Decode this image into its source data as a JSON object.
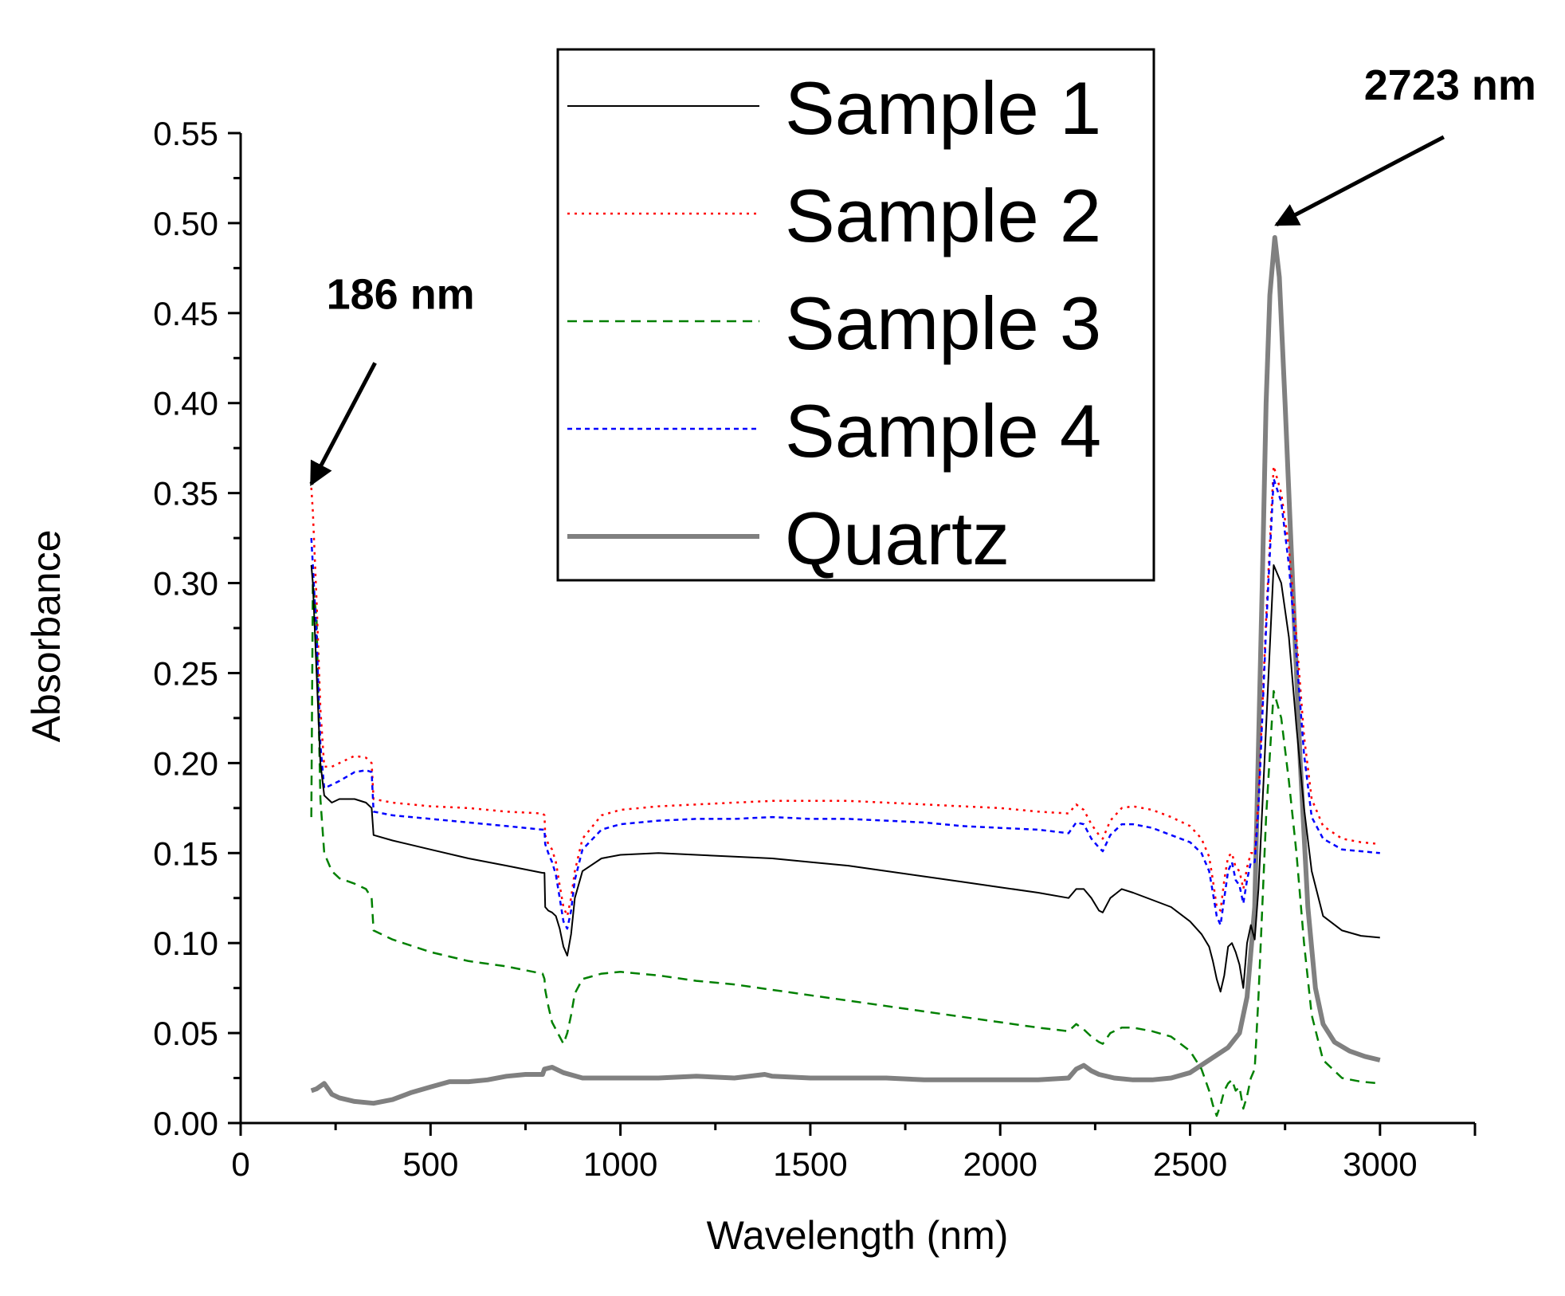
{
  "chart_data": {
    "type": "line",
    "xlabel": "Wavelength (nm)",
    "ylabel": "Absorbance",
    "xlim": [
      0,
      3250
    ],
    "ylim": [
      0,
      0.55
    ],
    "x_ticks": [
      0,
      500,
      1000,
      1500,
      2000,
      2500,
      3000
    ],
    "x_tick_labels": [
      "0",
      "500",
      "1000",
      "1500",
      "2000",
      "2500",
      "3000"
    ],
    "y_ticks": [
      0,
      0.05,
      0.1,
      0.15,
      0.2,
      0.25,
      0.3,
      0.35,
      0.4,
      0.45,
      0.5,
      0.55
    ],
    "y_tick_labels": [
      "0.00",
      "0.05",
      "0.10",
      "0.15",
      "0.20",
      "0.25",
      "0.30",
      "0.35",
      "0.40",
      "0.45",
      "0.50",
      "0.55"
    ],
    "legend_position": "top-center",
    "series": [
      {
        "name": "Sample 1",
        "color": "#000000",
        "style": "solid",
        "width": "thin",
        "x": [
          186,
          190,
          200,
          210,
          220,
          240,
          260,
          300,
          330,
          345,
          350,
          400,
          500,
          600,
          700,
          795,
          800,
          802,
          810,
          820,
          830,
          840,
          850,
          860,
          870,
          880,
          900,
          950,
          1000,
          1100,
          1200,
          1300,
          1400,
          1500,
          1600,
          1700,
          1800,
          1900,
          2000,
          2100,
          2180,
          2200,
          2220,
          2240,
          2260,
          2270,
          2290,
          2320,
          2350,
          2400,
          2450,
          2500,
          2530,
          2550,
          2560,
          2570,
          2580,
          2590,
          2600,
          2610,
          2620,
          2630,
          2640,
          2650,
          2660,
          2670,
          2680,
          2700,
          2720,
          2740,
          2760,
          2780,
          2800,
          2820,
          2850,
          2900,
          2950,
          3000
        ],
        "y": [
          0.31,
          0.3,
          0.25,
          0.2,
          0.182,
          0.178,
          0.18,
          0.18,
          0.178,
          0.175,
          0.16,
          0.157,
          0.152,
          0.147,
          0.143,
          0.139,
          0.139,
          0.12,
          0.118,
          0.117,
          0.115,
          0.108,
          0.098,
          0.093,
          0.105,
          0.125,
          0.14,
          0.147,
          0.149,
          0.15,
          0.149,
          0.148,
          0.147,
          0.145,
          0.143,
          0.14,
          0.137,
          0.134,
          0.131,
          0.128,
          0.125,
          0.13,
          0.13,
          0.125,
          0.118,
          0.117,
          0.125,
          0.13,
          0.128,
          0.124,
          0.12,
          0.112,
          0.105,
          0.098,
          0.09,
          0.08,
          0.073,
          0.082,
          0.098,
          0.1,
          0.095,
          0.088,
          0.075,
          0.1,
          0.11,
          0.102,
          0.13,
          0.22,
          0.31,
          0.3,
          0.27,
          0.22,
          0.175,
          0.14,
          0.115,
          0.107,
          0.104,
          0.103
        ]
      },
      {
        "name": "Sample 2",
        "color": "#ff0000",
        "style": "dotted",
        "width": "medium",
        "x": [
          186,
          190,
          200,
          210,
          220,
          240,
          260,
          300,
          330,
          345,
          350,
          400,
          500,
          600,
          700,
          795,
          800,
          802,
          810,
          820,
          830,
          840,
          850,
          860,
          870,
          880,
          900,
          950,
          1000,
          1100,
          1200,
          1300,
          1400,
          1500,
          1600,
          1700,
          1800,
          1900,
          2000,
          2100,
          2180,
          2200,
          2220,
          2240,
          2260,
          2270,
          2290,
          2320,
          2350,
          2400,
          2450,
          2500,
          2530,
          2550,
          2560,
          2570,
          2580,
          2590,
          2600,
          2610,
          2620,
          2630,
          2640,
          2650,
          2660,
          2670,
          2680,
          2700,
          2720,
          2740,
          2760,
          2780,
          2800,
          2820,
          2850,
          2900,
          2950,
          3000
        ],
        "y": [
          0.353,
          0.34,
          0.29,
          0.23,
          0.198,
          0.198,
          0.2,
          0.204,
          0.203,
          0.2,
          0.18,
          0.178,
          0.176,
          0.175,
          0.173,
          0.172,
          0.171,
          0.16,
          0.155,
          0.152,
          0.145,
          0.132,
          0.12,
          0.115,
          0.125,
          0.14,
          0.158,
          0.171,
          0.174,
          0.176,
          0.177,
          0.178,
          0.179,
          0.179,
          0.179,
          0.178,
          0.177,
          0.176,
          0.175,
          0.173,
          0.172,
          0.177,
          0.174,
          0.166,
          0.16,
          0.158,
          0.168,
          0.175,
          0.176,
          0.174,
          0.17,
          0.165,
          0.158,
          0.148,
          0.135,
          0.12,
          0.118,
          0.135,
          0.148,
          0.15,
          0.142,
          0.14,
          0.13,
          0.142,
          0.15,
          0.15,
          0.18,
          0.28,
          0.365,
          0.35,
          0.32,
          0.27,
          0.215,
          0.18,
          0.165,
          0.158,
          0.156,
          0.155
        ]
      },
      {
        "name": "Sample 3",
        "color": "#008000",
        "style": "dashed",
        "width": "medium",
        "x": [
          186,
          190,
          200,
          210,
          220,
          240,
          260,
          300,
          330,
          345,
          350,
          400,
          500,
          600,
          700,
          795,
          800,
          802,
          810,
          820,
          830,
          840,
          850,
          860,
          870,
          880,
          900,
          950,
          1000,
          1100,
          1200,
          1300,
          1400,
          1500,
          1600,
          1700,
          1800,
          1900,
          2000,
          2100,
          2180,
          2200,
          2220,
          2240,
          2260,
          2270,
          2290,
          2320,
          2350,
          2400,
          2450,
          2500,
          2530,
          2550,
          2560,
          2570,
          2580,
          2590,
          2600,
          2610,
          2620,
          2630,
          2640,
          2650,
          2660,
          2670,
          2680,
          2700,
          2720,
          2740,
          2760,
          2780,
          2800,
          2820,
          2850,
          2900,
          2950,
          3000
        ],
        "y": [
          0.17,
          0.3,
          0.28,
          0.18,
          0.15,
          0.14,
          0.136,
          0.133,
          0.13,
          0.125,
          0.107,
          0.102,
          0.095,
          0.09,
          0.087,
          0.083,
          0.08,
          0.074,
          0.065,
          0.056,
          0.052,
          0.048,
          0.044,
          0.05,
          0.06,
          0.072,
          0.08,
          0.083,
          0.084,
          0.082,
          0.079,
          0.077,
          0.074,
          0.071,
          0.068,
          0.065,
          0.062,
          0.059,
          0.056,
          0.053,
          0.051,
          0.055,
          0.052,
          0.048,
          0.045,
          0.044,
          0.05,
          0.053,
          0.053,
          0.051,
          0.048,
          0.04,
          0.03,
          0.018,
          0.01,
          0.004,
          0.01,
          0.018,
          0.022,
          0.024,
          0.018,
          0.02,
          0.008,
          0.015,
          0.025,
          0.03,
          0.07,
          0.17,
          0.24,
          0.225,
          0.19,
          0.15,
          0.1,
          0.06,
          0.035,
          0.025,
          0.023,
          0.022
        ]
      },
      {
        "name": "Sample 4",
        "color": "#0000ff",
        "style": "dashed-fine",
        "width": "medium",
        "x": [
          186,
          190,
          200,
          210,
          220,
          240,
          260,
          300,
          330,
          345,
          350,
          400,
          500,
          600,
          700,
          795,
          800,
          802,
          810,
          820,
          830,
          840,
          850,
          860,
          870,
          880,
          900,
          950,
          1000,
          1100,
          1200,
          1300,
          1400,
          1500,
          1600,
          1700,
          1800,
          1900,
          2000,
          2100,
          2180,
          2200,
          2220,
          2240,
          2260,
          2270,
          2290,
          2320,
          2350,
          2400,
          2450,
          2500,
          2530,
          2550,
          2560,
          2570,
          2580,
          2590,
          2600,
          2610,
          2620,
          2630,
          2640,
          2650,
          2660,
          2670,
          2680,
          2700,
          2720,
          2740,
          2760,
          2780,
          2800,
          2820,
          2850,
          2900,
          2950,
          3000
        ],
        "y": [
          0.325,
          0.31,
          0.27,
          0.21,
          0.186,
          0.188,
          0.19,
          0.195,
          0.196,
          0.195,
          0.173,
          0.171,
          0.169,
          0.167,
          0.165,
          0.163,
          0.163,
          0.155,
          0.15,
          0.145,
          0.138,
          0.125,
          0.112,
          0.108,
          0.118,
          0.135,
          0.152,
          0.163,
          0.166,
          0.168,
          0.169,
          0.169,
          0.17,
          0.169,
          0.169,
          0.168,
          0.167,
          0.165,
          0.164,
          0.163,
          0.161,
          0.167,
          0.166,
          0.158,
          0.153,
          0.151,
          0.16,
          0.166,
          0.166,
          0.164,
          0.16,
          0.156,
          0.15,
          0.14,
          0.128,
          0.115,
          0.11,
          0.125,
          0.14,
          0.145,
          0.135,
          0.132,
          0.122,
          0.135,
          0.145,
          0.145,
          0.175,
          0.275,
          0.358,
          0.345,
          0.31,
          0.26,
          0.205,
          0.17,
          0.158,
          0.152,
          0.151,
          0.15
        ]
      },
      {
        "name": "Quartz",
        "color": "#808080",
        "style": "solid",
        "width": "thick",
        "x": [
          186,
          200,
          220,
          240,
          260,
          300,
          350,
          400,
          450,
          500,
          550,
          600,
          650,
          700,
          750,
          795,
          800,
          820,
          850,
          900,
          1000,
          1100,
          1200,
          1300,
          1380,
          1400,
          1500,
          1600,
          1700,
          1800,
          1900,
          2000,
          2100,
          2180,
          2200,
          2220,
          2240,
          2260,
          2300,
          2350,
          2400,
          2450,
          2500,
          2550,
          2600,
          2630,
          2650,
          2670,
          2690,
          2700,
          2710,
          2723,
          2735,
          2750,
          2770,
          2790,
          2810,
          2830,
          2850,
          2880,
          2920,
          2960,
          3000
        ],
        "y": [
          0.018,
          0.019,
          0.022,
          0.016,
          0.014,
          0.012,
          0.011,
          0.013,
          0.017,
          0.02,
          0.023,
          0.023,
          0.024,
          0.026,
          0.027,
          0.027,
          0.03,
          0.031,
          0.028,
          0.025,
          0.025,
          0.025,
          0.026,
          0.025,
          0.027,
          0.026,
          0.025,
          0.025,
          0.025,
          0.024,
          0.024,
          0.024,
          0.024,
          0.025,
          0.03,
          0.032,
          0.029,
          0.027,
          0.025,
          0.024,
          0.024,
          0.025,
          0.028,
          0.035,
          0.042,
          0.05,
          0.07,
          0.12,
          0.3,
          0.4,
          0.46,
          0.492,
          0.47,
          0.4,
          0.3,
          0.2,
          0.12,
          0.075,
          0.055,
          0.045,
          0.04,
          0.037,
          0.035
        ]
      }
    ],
    "annotations": [
      {
        "text": "186 nm",
        "target_x": 186,
        "target_y": 0.355
      },
      {
        "text": "2723 nm",
        "target_x": 2723,
        "target_y": 0.5
      }
    ]
  }
}
